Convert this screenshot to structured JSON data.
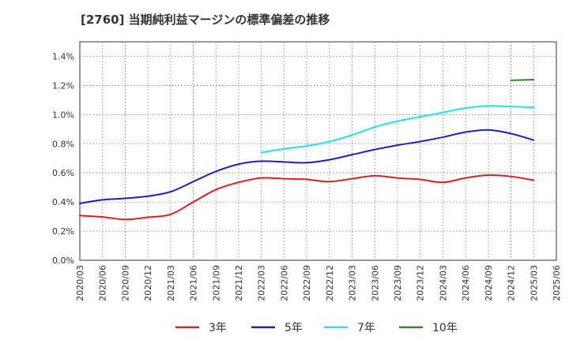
{
  "chart_data": {
    "type": "line",
    "title": "[2760]  当期純利益マージンの標準偏差の推移",
    "xlabel": "",
    "ylabel": "",
    "x_start": "2020/03",
    "x_end": "2025/06",
    "ylim": [
      0,
      0.015
    ],
    "grid": true,
    "legend_position": "bottom",
    "y_ticks": [
      "0.0%",
      "0.2%",
      "0.4%",
      "0.6%",
      "0.8%",
      "1.0%",
      "1.2%",
      "1.4%"
    ],
    "x_ticks": [
      "2020/03",
      "2020/06",
      "2020/09",
      "2020/12",
      "2021/03",
      "2021/06",
      "2021/09",
      "2021/12",
      "2022/03",
      "2022/06",
      "2022/09",
      "2022/12",
      "2023/03",
      "2023/06",
      "2023/09",
      "2023/12",
      "2024/03",
      "2024/06",
      "2024/09",
      "2024/12",
      "2025/03",
      "2025/06"
    ],
    "series": [
      {
        "name": "3年",
        "color": "#dd1f1f",
        "points": [
          [
            "2020/03",
            0.00307
          ],
          [
            "2020/06",
            0.00297
          ],
          [
            "2020/09",
            0.0028
          ],
          [
            "2020/12",
            0.00295
          ],
          [
            "2021/03",
            0.00315
          ],
          [
            "2021/06",
            0.004
          ],
          [
            "2021/09",
            0.00485
          ],
          [
            "2021/12",
            0.00535
          ],
          [
            "2022/03",
            0.00565
          ],
          [
            "2022/06",
            0.0056
          ],
          [
            "2022/09",
            0.00555
          ],
          [
            "2022/12",
            0.0054
          ],
          [
            "2023/03",
            0.0056
          ],
          [
            "2023/06",
            0.0058
          ],
          [
            "2023/09",
            0.00565
          ],
          [
            "2023/12",
            0.00555
          ],
          [
            "2024/03",
            0.00535
          ],
          [
            "2024/06",
            0.00565
          ],
          [
            "2024/09",
            0.00585
          ],
          [
            "2024/12",
            0.00575
          ],
          [
            "2025/03",
            0.0055
          ]
        ]
      },
      {
        "name": "5年",
        "color": "#1f1fbf",
        "points": [
          [
            "2020/03",
            0.0039
          ],
          [
            "2020/06",
            0.00415
          ],
          [
            "2020/09",
            0.00425
          ],
          [
            "2020/12",
            0.0044
          ],
          [
            "2021/03",
            0.0047
          ],
          [
            "2021/06",
            0.0054
          ],
          [
            "2021/09",
            0.0061
          ],
          [
            "2021/12",
            0.0066
          ],
          [
            "2022/03",
            0.0068
          ],
          [
            "2022/06",
            0.00675
          ],
          [
            "2022/09",
            0.0067
          ],
          [
            "2022/12",
            0.0069
          ],
          [
            "2023/03",
            0.00725
          ],
          [
            "2023/06",
            0.0076
          ],
          [
            "2023/09",
            0.0079
          ],
          [
            "2023/12",
            0.00815
          ],
          [
            "2024/03",
            0.00845
          ],
          [
            "2024/06",
            0.0088
          ],
          [
            "2024/09",
            0.00895
          ],
          [
            "2024/12",
            0.0087
          ],
          [
            "2025/03",
            0.00825
          ]
        ]
      },
      {
        "name": "7年",
        "color": "#22e0f0",
        "points": [
          [
            "2022/03",
            0.0074
          ],
          [
            "2022/06",
            0.00765
          ],
          [
            "2022/09",
            0.00785
          ],
          [
            "2022/12",
            0.00815
          ],
          [
            "2023/03",
            0.0086
          ],
          [
            "2023/06",
            0.00915
          ],
          [
            "2023/09",
            0.00955
          ],
          [
            "2023/12",
            0.00985
          ],
          [
            "2024/03",
            0.01015
          ],
          [
            "2024/06",
            0.01045
          ],
          [
            "2024/09",
            0.0106
          ],
          [
            "2024/12",
            0.01055
          ],
          [
            "2025/03",
            0.0105
          ]
        ]
      },
      {
        "name": "10年",
        "color": "#2a8a2a",
        "points": [
          [
            "2024/12",
            0.01235
          ],
          [
            "2025/03",
            0.0124
          ]
        ]
      }
    ]
  }
}
